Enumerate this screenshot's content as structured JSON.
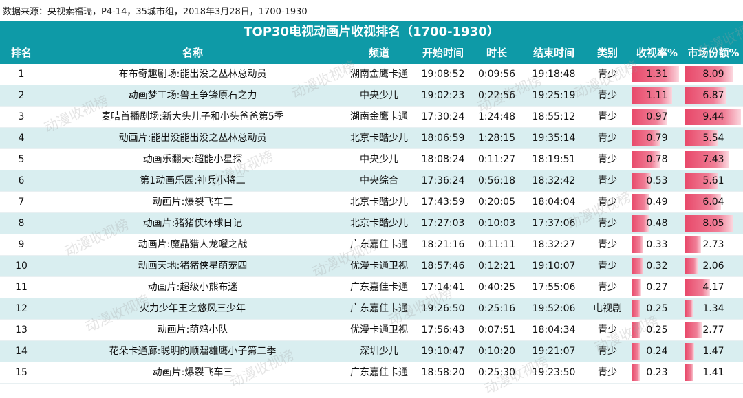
{
  "source": "数据来源：央视索福瑞，P4-14，35城市组，2018年3月28日，1700-1930",
  "title": "TOP30电视动画片收视排名（1700-1930）",
  "columns": {
    "rank": "排名",
    "name": "名称",
    "channel": "频道",
    "start": "开始时间",
    "duration": "时长",
    "end": "结束时间",
    "type": "类别",
    "rating": "收视率%",
    "share": "市场份额%"
  },
  "watermark": "动漫收视榜",
  "rows": [
    {
      "rank": "1",
      "name": "布布奇趣剧场:能出没之丛林总动员",
      "channel": "湖南金鹰卡通",
      "start": "19:08:52",
      "duration": "0:09:56",
      "end": "19:18:48",
      "type": "青少",
      "rating": 1.31,
      "share": 8.09,
      "rating_label": "1.31",
      "share_label": "8.09"
    },
    {
      "rank": "2",
      "name": "动画梦工场:兽王争锋原石之力",
      "channel": "中央少儿",
      "start": "19:02:23",
      "duration": "0:22:56",
      "end": "19:25:19",
      "type": "青少",
      "rating": 1.11,
      "share": 6.87,
      "rating_label": "1.11",
      "share_label": "6.87"
    },
    {
      "rank": "3",
      "name": "麦咭首播剧场:新大头儿子和小头爸爸第5季",
      "channel": "湖南金鹰卡通",
      "start": "17:30:24",
      "duration": "1:24:48",
      "end": "18:55:12",
      "type": "青少",
      "rating": 0.97,
      "share": 9.44,
      "rating_label": "0.97",
      "share_label": "9.44"
    },
    {
      "rank": "4",
      "name": "动画片:能出没能出没之丛林总动员",
      "channel": "北京卡酷少儿",
      "start": "18:06:59",
      "duration": "1:28:15",
      "end": "19:35:14",
      "type": "青少",
      "rating": 0.79,
      "share": 5.54,
      "rating_label": "0.79",
      "share_label": "5.54"
    },
    {
      "rank": "5",
      "name": "动画乐翻天:超能小星探",
      "channel": "中央少儿",
      "start": "18:08:24",
      "duration": "0:11:27",
      "end": "18:19:51",
      "type": "青少",
      "rating": 0.78,
      "share": 7.43,
      "rating_label": "0.78",
      "share_label": "7.43"
    },
    {
      "rank": "6",
      "name": "第1动画乐园:神兵小将二",
      "channel": "中央综合",
      "start": "17:36:24",
      "duration": "0:56:18",
      "end": "18:32:42",
      "type": "青少",
      "rating": 0.53,
      "share": 5.61,
      "rating_label": "0.53",
      "share_label": "5.61"
    },
    {
      "rank": "7",
      "name": "动画片:爆裂飞车三",
      "channel": "北京卡酷少儿",
      "start": "17:43:59",
      "duration": "0:20:05",
      "end": "18:04:04",
      "type": "青少",
      "rating": 0.49,
      "share": 6.04,
      "rating_label": "0.49",
      "share_label": "6.04"
    },
    {
      "rank": "8",
      "name": "动画片:猪猪侠环球日记",
      "channel": "北京卡酷少儿",
      "start": "17:27:03",
      "duration": "0:10:03",
      "end": "17:37:06",
      "type": "青少",
      "rating": 0.48,
      "share": 8.05,
      "rating_label": "0.48",
      "share_label": "8.05"
    },
    {
      "rank": "9",
      "name": "动画片:魔晶猎人龙曜之战",
      "channel": "广东嘉佳卡通",
      "start": "18:21:16",
      "duration": "0:11:11",
      "end": "18:32:27",
      "type": "青少",
      "rating": 0.33,
      "share": 2.73,
      "rating_label": "0.33",
      "share_label": "2.73"
    },
    {
      "rank": "10",
      "name": "动画天地:猪猪侠星萌宠四",
      "channel": "优漫卡通卫视",
      "start": "18:57:46",
      "duration": "0:12:21",
      "end": "19:10:07",
      "type": "青少",
      "rating": 0.32,
      "share": 2.06,
      "rating_label": "0.32",
      "share_label": "2.06"
    },
    {
      "rank": "11",
      "name": "动画片:超级小熊布迷",
      "channel": "广东嘉佳卡通",
      "start": "17:14:41",
      "duration": "0:40:25",
      "end": "17:55:06",
      "type": "青少",
      "rating": 0.27,
      "share": 4.17,
      "rating_label": "0.27",
      "share_label": "4.17"
    },
    {
      "rank": "12",
      "name": "火力少年王之悠风三少年",
      "channel": "广东嘉佳卡通",
      "start": "19:26:50",
      "duration": "0:25:16",
      "end": "19:52:06",
      "type": "电视剧",
      "rating": 0.25,
      "share": 1.34,
      "rating_label": "0.25",
      "share_label": "1.34"
    },
    {
      "rank": "13",
      "name": "动画片:萌鸡小队",
      "channel": "优漫卡通卫视",
      "start": "17:56:43",
      "duration": "0:07:51",
      "end": "18:04:34",
      "type": "青少",
      "rating": 0.25,
      "share": 2.77,
      "rating_label": "0.25",
      "share_label": "2.77"
    },
    {
      "rank": "14",
      "name": "花朵卡通廊:聪明的顺溜雄鹰小子第二季",
      "channel": "深圳少儿",
      "start": "19:10:47",
      "duration": "0:10:20",
      "end": "19:21:07",
      "type": "青少",
      "rating": 0.24,
      "share": 1.47,
      "rating_label": "0.24",
      "share_label": "1.47"
    },
    {
      "rank": "15",
      "name": "动画片:爆裂飞车三",
      "channel": "广东嘉佳卡通",
      "start": "18:58:20",
      "duration": "0:25:30",
      "end": "19:23:50",
      "type": "青少",
      "rating": 0.23,
      "share": 1.41,
      "rating_label": "0.23",
      "share_label": "1.41"
    }
  ]
}
